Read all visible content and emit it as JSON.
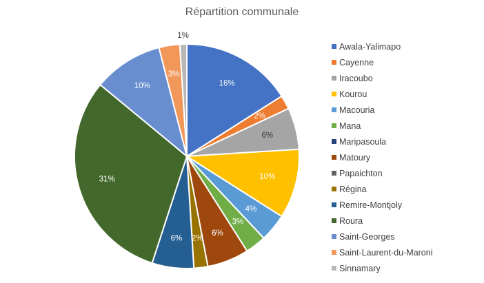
{
  "chart_data": {
    "type": "pie",
    "title": "Répartition communale",
    "categories": [
      "Awala-Yalimapo",
      "Cayenne",
      "Iracoubo",
      "Kourou",
      "Macouria",
      "Mana",
      "Maripasoula",
      "Matoury",
      "Papaichton",
      "Régina",
      "Remire-Montjoly",
      "Roura",
      "Saint-Georges",
      "Saint-Laurent-du-Maroni",
      "Sinnamary"
    ],
    "values": [
      16,
      2,
      6,
      10,
      4,
      3,
      0,
      6,
      0,
      2,
      6,
      31,
      10,
      3,
      1
    ],
    "labels": [
      "16%",
      "2%",
      "6%",
      "10%",
      "4%",
      "3%",
      "",
      "6%",
      "",
      "2%",
      "6%",
      "31%",
      "10%",
      "3%",
      "1%"
    ],
    "colors": [
      "#4472C4",
      "#ED7D31",
      "#A5A5A5",
      "#FFC000",
      "#5B9BD5",
      "#70AD47",
      "#264478",
      "#9E480E",
      "#636363",
      "#997300",
      "#255E91",
      "#43682B",
      "#698ED0",
      "#F1975A",
      "#B7B7B7"
    ],
    "legend_position": "right"
  }
}
